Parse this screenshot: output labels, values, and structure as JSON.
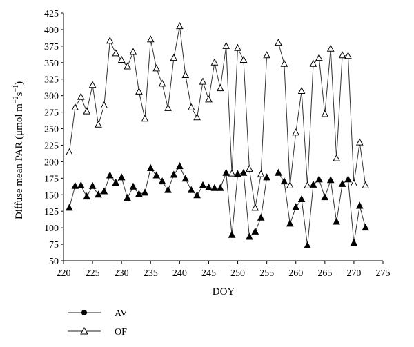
{
  "chart_data": {
    "type": "line",
    "title": "",
    "xlabel": "DOY",
    "ylabel_main": "Diffuse mean PAR (μmol m",
    "ylabel_sup1": "−2",
    "ylabel_mid": "s",
    "ylabel_sup2": "−1",
    "ylabel_end": ")",
    "xlim": [
      220,
      275
    ],
    "ylim": [
      50,
      425
    ],
    "xticks": [
      "220",
      "225",
      "230",
      "235",
      "240",
      "245",
      "250",
      "255",
      "260",
      "265",
      "270",
      "275"
    ],
    "yticks": [
      "50",
      "75",
      "100",
      "125",
      "150",
      "175",
      "200",
      "225",
      "250",
      "275",
      "300",
      "325",
      "350",
      "375",
      "400",
      "425"
    ],
    "grid": false,
    "legend_position": "bottom-left",
    "series": [
      {
        "name": "AV",
        "marker": "filled-triangle",
        "x": [
          221,
          222,
          223,
          224,
          225,
          226,
          227,
          228,
          229,
          230,
          231,
          232,
          233,
          234,
          235,
          236,
          237,
          238,
          239,
          240,
          241,
          242,
          243,
          244,
          245,
          246,
          247,
          248,
          249,
          250,
          251,
          252,
          253,
          254,
          255,
          257,
          258,
          259,
          260,
          261,
          262,
          263,
          264,
          265,
          266,
          267,
          268,
          269,
          270,
          271,
          272
        ],
        "values": [
          130,
          163,
          164,
          147,
          163,
          150,
          155,
          179,
          168,
          176,
          145,
          162,
          151,
          153,
          190,
          179,
          170,
          157,
          180,
          193,
          174,
          157,
          149,
          164,
          161,
          160,
          160,
          183,
          89,
          181,
          183,
          86,
          94,
          115,
          176,
          183,
          170,
          106,
          131,
          143,
          73,
          165,
          173,
          146,
          172,
          109,
          166,
          173,
          77,
          133,
          100
        ]
      },
      {
        "name": "OF",
        "marker": "open-triangle",
        "x": [
          221,
          222,
          223,
          224,
          225,
          226,
          227,
          228,
          229,
          230,
          231,
          232,
          233,
          234,
          235,
          236,
          237,
          238,
          239,
          240,
          241,
          242,
          243,
          244,
          245,
          246,
          247,
          248,
          249,
          250,
          251,
          252,
          253,
          254,
          255,
          257,
          258,
          259,
          260,
          261,
          262,
          263,
          264,
          265,
          266,
          267,
          268,
          269,
          270,
          271,
          272
        ],
        "values": [
          214,
          282,
          298,
          276,
          316,
          256,
          285,
          383,
          364,
          354,
          344,
          366,
          306,
          265,
          385,
          341,
          318,
          281,
          357,
          405,
          331,
          282,
          267,
          321,
          294,
          350,
          311,
          375,
          182,
          372,
          354,
          189,
          130,
          181,
          361,
          380,
          348,
          164,
          244,
          307,
          164,
          348,
          357,
          272,
          371,
          205,
          361,
          360,
          167,
          229,
          164
        ]
      }
    ]
  }
}
